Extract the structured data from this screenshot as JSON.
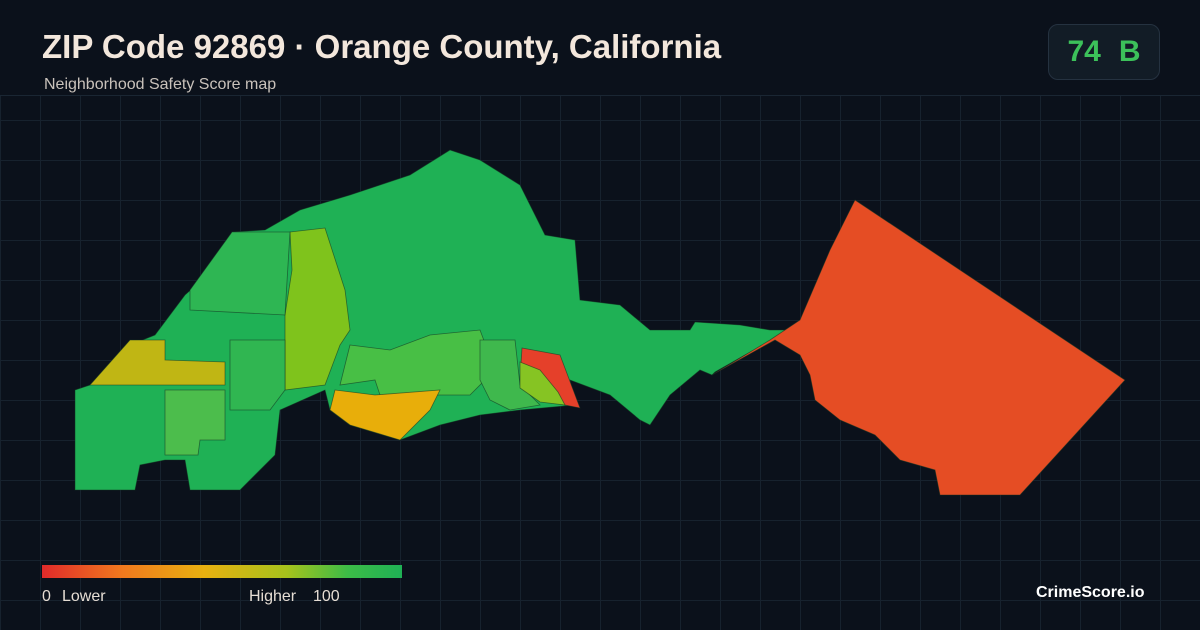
{
  "header": {
    "title": "ZIP Code 92869 · Orange County, California",
    "subtitle": "Neighborhood Safety Score map"
  },
  "score": {
    "value": 74,
    "grade": "B"
  },
  "legend": {
    "min": 0,
    "min_label": "Lower",
    "max_label": "Higher",
    "max": 100
  },
  "brand": "CrimeScore.io"
}
